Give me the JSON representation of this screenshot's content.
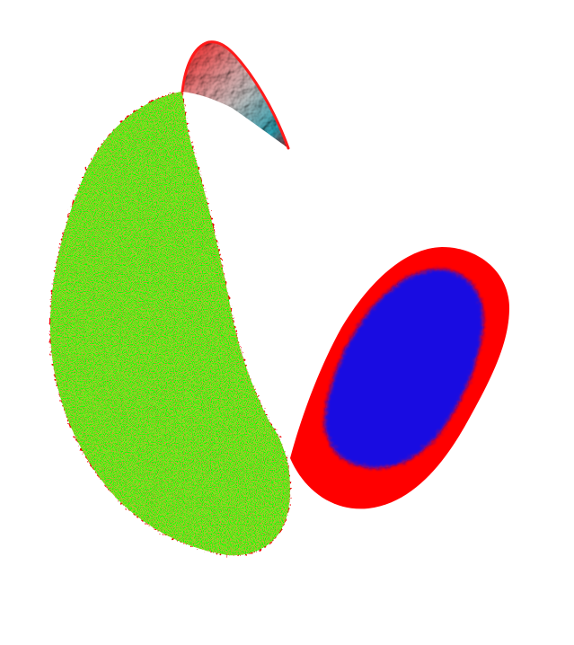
{
  "scene": {
    "background": "#ffffff",
    "shapes": [
      {
        "name": "green-crescent-surface",
        "fill_color": "#00ff00",
        "speckle_color": "#e81010",
        "edge_color": "#ee0000"
      },
      {
        "name": "red-blue-ellipsoid-surface",
        "outer_color": "#ff0000",
        "inner_color": "#1010ee"
      },
      {
        "name": "red-cyan-sliver-surface",
        "red_color": "#ff1a1a",
        "gray_color": "#c8c8c8",
        "cyan_color": "#2aa3b5"
      }
    ]
  }
}
